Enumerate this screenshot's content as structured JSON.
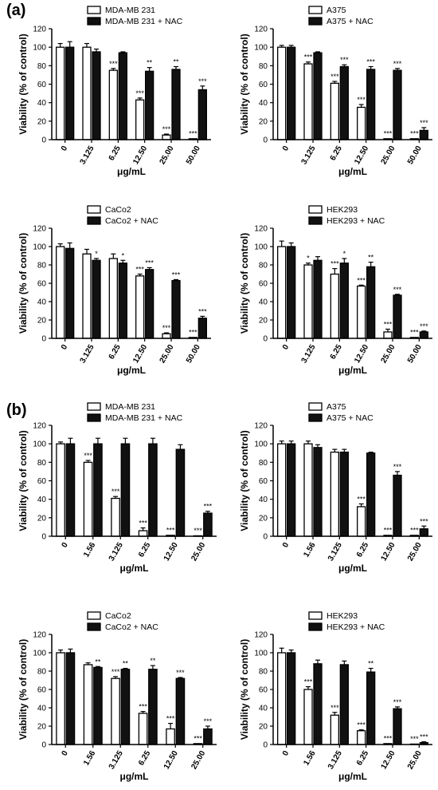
{
  "panel_labels": [
    "(a)",
    "(b)"
  ],
  "colors": {
    "treated": "#ffffff",
    "treated_nac": "#111111",
    "axis": "#000000"
  },
  "chart_data": [
    {
      "type": "bar",
      "panel": "(a)",
      "categories": [
        "0",
        "3.125",
        "6.25",
        "12.50",
        "25.00",
        "50.00"
      ],
      "xlabel": "μg/mL",
      "ylabel": "Viability (% of control)",
      "ylim": [
        0,
        120
      ],
      "yticks": [
        0,
        20,
        40,
        60,
        80,
        100,
        120
      ],
      "legend_position": "top",
      "series": [
        {
          "name": "MDA-MB 231",
          "values": [
            100,
            100,
            75,
            43,
            5,
            1
          ],
          "errors": [
            4,
            4,
            2,
            2,
            1,
            0.5
          ],
          "annotations": [
            "",
            "",
            "***",
            "***",
            "***",
            "***"
          ]
        },
        {
          "name": "MDA-MB 231 + NAC",
          "values": [
            100,
            95,
            94,
            74,
            76,
            54
          ],
          "errors": [
            6,
            3,
            1,
            4,
            3,
            4
          ],
          "annotations": [
            "",
            "",
            "",
            "**",
            "**",
            "***"
          ]
        }
      ]
    },
    {
      "type": "bar",
      "panel": "(a)",
      "categories": [
        "0",
        "3.125",
        "6.25",
        "12.50",
        "25.00",
        "50.00"
      ],
      "xlabel": "μg/mL",
      "ylabel": "Viability (% of control)",
      "ylim": [
        0,
        120
      ],
      "yticks": [
        0,
        20,
        40,
        60,
        80,
        100,
        120
      ],
      "legend_position": "top",
      "series": [
        {
          "name": "A375",
          "values": [
            100,
            82,
            61,
            35,
            1,
            1
          ],
          "errors": [
            2,
            2,
            2,
            3,
            0.5,
            0.5
          ],
          "annotations": [
            "",
            "***",
            "***",
            "***",
            "***",
            "***"
          ]
        },
        {
          "name": "A375 + NAC",
          "values": [
            100,
            94,
            79,
            76,
            75,
            10
          ],
          "errors": [
            2,
            1,
            2,
            3,
            2,
            3
          ],
          "annotations": [
            "",
            "",
            "***",
            "***",
            "***",
            "***"
          ]
        }
      ]
    },
    {
      "type": "bar",
      "panel": "(a)",
      "categories": [
        "0",
        "3.125",
        "6.25",
        "12.50",
        "25.00",
        "50.00"
      ],
      "xlabel": "μg/mL",
      "ylabel": "Viability (% of control)",
      "ylim": [
        0,
        120
      ],
      "yticks": [
        0,
        20,
        40,
        60,
        80,
        100,
        120
      ],
      "legend_position": "top",
      "series": [
        {
          "name": "CaCo2",
          "values": [
            100,
            92,
            87,
            68,
            5,
            1
          ],
          "errors": [
            3,
            5,
            5,
            2,
            1,
            0.5
          ],
          "annotations": [
            "",
            "",
            "",
            "***",
            "***",
            "***"
          ]
        },
        {
          "name": "CaCo2 + NAC",
          "values": [
            98,
            85,
            82,
            75,
            63,
            22
          ],
          "errors": [
            6,
            2,
            3,
            2,
            1,
            2
          ],
          "annotations": [
            "",
            "*",
            "*",
            "***",
            "***",
            "***"
          ]
        }
      ]
    },
    {
      "type": "bar",
      "panel": "(a)",
      "categories": [
        "0",
        "3.125",
        "6.25",
        "12.50",
        "25.00",
        "50.00"
      ],
      "xlabel": "μg/mL",
      "ylabel": "Viability (% of control)",
      "ylim": [
        0,
        120
      ],
      "yticks": [
        0,
        20,
        40,
        60,
        80,
        100,
        120
      ],
      "legend_position": "top",
      "series": [
        {
          "name": "HEK293",
          "values": [
            100,
            80,
            70,
            57,
            7,
            1
          ],
          "errors": [
            6,
            2,
            6,
            1,
            3,
            0.5
          ],
          "annotations": [
            "",
            "*",
            "***",
            "***",
            "***",
            "***"
          ]
        },
        {
          "name": "HEK293 + NAC",
          "values": [
            100,
            85,
            82,
            78,
            47,
            7
          ],
          "errors": [
            4,
            4,
            5,
            5,
            1,
            1
          ],
          "annotations": [
            "",
            "",
            "*",
            "**",
            "***",
            "***"
          ]
        }
      ]
    },
    {
      "type": "bar",
      "panel": "(b)",
      "categories": [
        "0",
        "1.56",
        "3.125",
        "6.25",
        "12.50",
        "25.00"
      ],
      "xlabel": "μg/mL",
      "ylabel": "Viability (% of control)",
      "ylim": [
        0,
        120
      ],
      "yticks": [
        0,
        20,
        40,
        60,
        80,
        100,
        120
      ],
      "legend_position": "top",
      "series": [
        {
          "name": "MDA-MB 231",
          "values": [
            100,
            80,
            41,
            6,
            1,
            0.5
          ],
          "errors": [
            2,
            2,
            2,
            3,
            0.5,
            0.3
          ],
          "annotations": [
            "",
            "***",
            "***",
            "***",
            "***",
            "***"
          ]
        },
        {
          "name": "MDA-MB 231 + NAC",
          "values": [
            100,
            100,
            100,
            100,
            94,
            25
          ],
          "errors": [
            6,
            6,
            6,
            6,
            5,
            2
          ],
          "annotations": [
            "",
            "",
            "",
            "",
            "",
            "***"
          ]
        }
      ]
    },
    {
      "type": "bar",
      "panel": "(b)",
      "categories": [
        "0",
        "1.56",
        "3.125",
        "6.25",
        "12.50",
        "25.00"
      ],
      "xlabel": "μg/mL",
      "ylabel": "Viability (% of control)",
      "ylim": [
        0,
        120
      ],
      "yticks": [
        0,
        20,
        40,
        60,
        80,
        100,
        120
      ],
      "legend_position": "top",
      "series": [
        {
          "name": "A375",
          "values": [
            100,
            100,
            91,
            32,
            1,
            1
          ],
          "errors": [
            3,
            3,
            3,
            3,
            0.5,
            0.5
          ],
          "annotations": [
            "",
            "",
            "",
            "***",
            "***",
            "***"
          ]
        },
        {
          "name": "A375 + NAC",
          "values": [
            100,
            96,
            91,
            90,
            66,
            8
          ],
          "errors": [
            3,
            3,
            3,
            1,
            4,
            3
          ],
          "annotations": [
            "",
            "",
            "",
            "",
            "***",
            "***"
          ]
        }
      ]
    },
    {
      "type": "bar",
      "panel": "(b)",
      "categories": [
        "0",
        "1.56",
        "3.125",
        "6.25",
        "12.50",
        "25.00"
      ],
      "xlabel": "μg/mL",
      "ylabel": "Viability (% of control)",
      "ylim": [
        0,
        120
      ],
      "yticks": [
        0,
        20,
        40,
        60,
        80,
        100,
        120
      ],
      "legend_position": "top",
      "series": [
        {
          "name": "CaCo2",
          "values": [
            100,
            87,
            72,
            34,
            17,
            1
          ],
          "errors": [
            3,
            2,
            2,
            2,
            6,
            0.5
          ],
          "annotations": [
            "",
            "",
            "***",
            "***",
            "***",
            "***"
          ]
        },
        {
          "name": "CaCo2 + NAC",
          "values": [
            100,
            84,
            82,
            82,
            72,
            17
          ],
          "errors": [
            4,
            1,
            1,
            4,
            1,
            3
          ],
          "annotations": [
            "",
            "**",
            "**",
            "**",
            "***",
            "***"
          ]
        }
      ]
    },
    {
      "type": "bar",
      "panel": "(b)",
      "categories": [
        "0",
        "1.56",
        "3.125",
        "6.25",
        "12.50",
        "25.00"
      ],
      "xlabel": "μg/mL",
      "ylabel": "Viability (% of control)",
      "ylim": [
        0,
        120
      ],
      "yticks": [
        0,
        20,
        40,
        60,
        80,
        100,
        120
      ],
      "legend_position": "top",
      "series": [
        {
          "name": "HEK293",
          "values": [
            100,
            60,
            32,
            15,
            1,
            0.5
          ],
          "errors": [
            5,
            3,
            3,
            1,
            0.5,
            0.3
          ],
          "annotations": [
            "",
            "***",
            "***",
            "***",
            "***",
            "***"
          ]
        },
        {
          "name": "HEK293 + NAC",
          "values": [
            100,
            88,
            87,
            79,
            39,
            2
          ],
          "errors": [
            3,
            4,
            4,
            4,
            2,
            1
          ],
          "annotations": [
            "",
            "",
            "",
            "**",
            "***",
            "***"
          ]
        }
      ]
    }
  ]
}
